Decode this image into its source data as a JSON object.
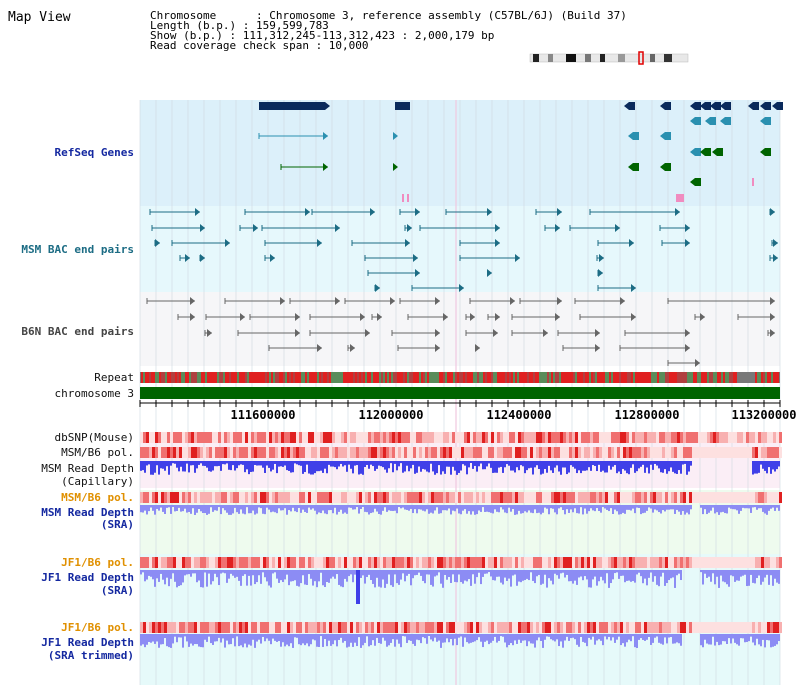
{
  "title": "Map View",
  "info": {
    "chromosome": "Chromosome      : Chromosome 3, reference assembly (C57BL/6J) (Build 37)",
    "length": "Length (b.p.) : 159,599,783",
    "show": "Show (b.p.) : 111,312,245-113,312,423 : 2,000,179 bp",
    "coverage": "Read coverage check span : 10,000"
  },
  "tracks": {
    "refseq": "RefSeq Genes",
    "msm_bac": "MSM BAC end pairs",
    "b6n_bac": "B6N BAC end pairs",
    "repeat": "Repeat",
    "chromosome": "chromosome 3",
    "dbsnp": "dbSNP(Mouse)",
    "msm_pol_1": "MSM/B6 pol.",
    "msm_depth_cap_1": "MSM Read Depth",
    "msm_depth_cap_2": "(Capillary)",
    "msm_pol_2": "MSM/B6 pol.",
    "msm_depth_sra_1": "MSM Read Depth",
    "msm_depth_sra_2": "(SRA)",
    "jf1_pol_1": "JF1/B6 pol.",
    "jf1_depth_1": "JF1 Read Depth",
    "jf1_depth_2": "(SRA)",
    "jf1_pol_2": "JF1/B6 pol.",
    "jf1_trim_1": "JF1 Read Depth",
    "jf1_trim_2": "(SRA trimmed)"
  },
  "axis": {
    "ticks": [
      "111600000",
      "112000000",
      "112400000",
      "112800000",
      "113200000"
    ]
  },
  "colors": {
    "refseq_bg": "#dcf0fa",
    "bac_bg": "#e6f8fc",
    "b6n_bg": "#f6f6f8",
    "gene_dark": "#0a2a5c",
    "gene_teal": "#2a90b0",
    "gene_green": "#187018",
    "chromosome_green": "#006400",
    "repeat_red": "#e02020",
    "depth_blue": "#4040e8",
    "depth_light": "#8c8cf4"
  }
}
